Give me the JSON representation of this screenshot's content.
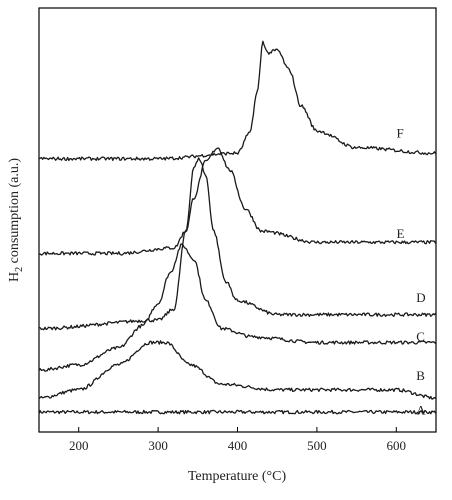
{
  "chart_data": {
    "type": "line",
    "title": "",
    "xlabel_main": "Temperature (",
    "xlabel_unit": "°C)",
    "ylabel_main": "H",
    "ylabel_sub": "2",
    "ylabel_rest": " consumption (a.u.)",
    "xlim": [
      150,
      650
    ],
    "x_ticks": [
      200,
      300,
      400,
      500,
      600
    ],
    "x_tick_labels": [
      "200",
      "300",
      "400",
      "500",
      "600"
    ],
    "y_ticks_visible": false,
    "grid": false,
    "series": [
      {
        "name": "A",
        "baseline": 0.05,
        "points": [
          [
            150,
            0.05
          ],
          [
            650,
            0.05
          ]
        ]
      },
      {
        "name": "B",
        "baseline": 0.1,
        "points": [
          [
            150,
            0.1
          ],
          [
            200,
            0.13
          ],
          [
            250,
            0.22
          ],
          [
            290,
            0.3
          ],
          [
            310,
            0.3
          ],
          [
            340,
            0.22
          ],
          [
            380,
            0.15
          ],
          [
            450,
            0.13
          ],
          [
            550,
            0.13
          ],
          [
            600,
            0.13
          ],
          [
            650,
            0.1
          ]
        ]
      },
      {
        "name": "C",
        "baseline": 0.2,
        "points": [
          [
            150,
            0.2
          ],
          [
            200,
            0.22
          ],
          [
            250,
            0.28
          ],
          [
            280,
            0.36
          ],
          [
            300,
            0.44
          ],
          [
            315,
            0.55
          ],
          [
            330,
            0.65
          ],
          [
            345,
            0.6
          ],
          [
            360,
            0.45
          ],
          [
            380,
            0.35
          ],
          [
            420,
            0.32
          ],
          [
            500,
            0.3
          ],
          [
            650,
            0.3
          ]
        ]
      },
      {
        "name": "D",
        "baseline": 0.35,
        "points": [
          [
            150,
            0.35
          ],
          [
            300,
            0.38
          ],
          [
            320,
            0.42
          ],
          [
            335,
            0.7
          ],
          [
            345,
            0.93
          ],
          [
            352,
            0.96
          ],
          [
            360,
            0.9
          ],
          [
            370,
            0.7
          ],
          [
            385,
            0.52
          ],
          [
            400,
            0.45
          ],
          [
            450,
            0.4
          ],
          [
            550,
            0.4
          ],
          [
            650,
            0.4
          ]
        ]
      },
      {
        "name": "E",
        "baseline": 0.62,
        "points": [
          [
            150,
            0.62
          ],
          [
            250,
            0.62
          ],
          [
            320,
            0.64
          ],
          [
            335,
            0.7
          ],
          [
            345,
            0.82
          ],
          [
            360,
            0.95
          ],
          [
            375,
            1.0
          ],
          [
            390,
            0.92
          ],
          [
            410,
            0.78
          ],
          [
            430,
            0.7
          ],
          [
            500,
            0.66
          ],
          [
            650,
            0.66
          ]
        ]
      },
      {
        "name": "F",
        "baseline": 0.96,
        "points": [
          [
            150,
            0.96
          ],
          [
            300,
            0.96
          ],
          [
            400,
            0.98
          ],
          [
            415,
            1.05
          ],
          [
            425,
            1.2
          ],
          [
            432,
            1.38
          ],
          [
            438,
            1.34
          ],
          [
            450,
            1.35
          ],
          [
            465,
            1.28
          ],
          [
            480,
            1.15
          ],
          [
            500,
            1.06
          ],
          [
            550,
            1.0
          ],
          [
            650,
            0.98
          ]
        ]
      }
    ],
    "label_positions_x": {
      "A": 600,
      "B": 600,
      "C": 600,
      "D": 600,
      "E": 575,
      "F": 575
    },
    "label_y_values": {
      "A": 0.055,
      "B": 0.18,
      "C": 0.32,
      "D": 0.46,
      "E": 0.69,
      "F": 1.05
    }
  }
}
